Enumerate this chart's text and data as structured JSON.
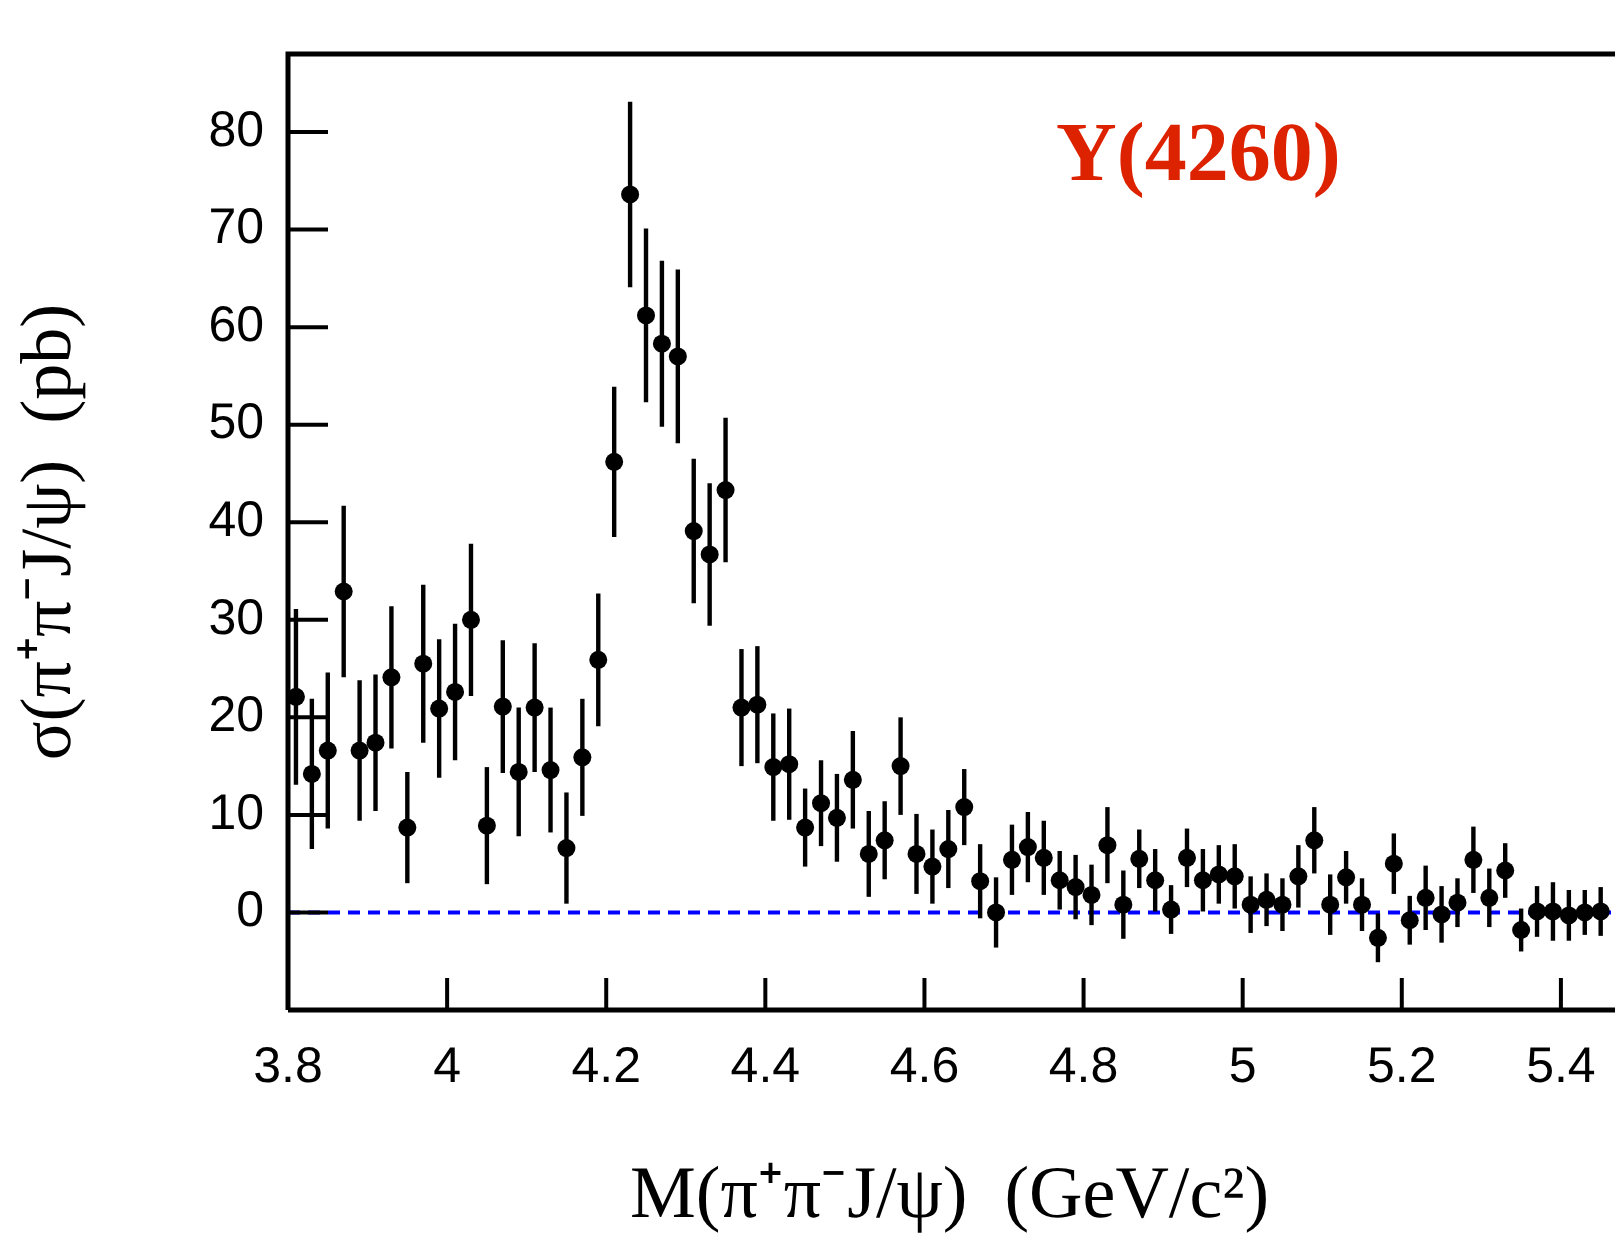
{
  "chart_data": {
    "type": "scatter",
    "xlabel": "M(π⁺π⁻J/ψ)  (GeV/c²)",
    "ylabel": "σ(π⁺π⁻J/ψ)  (pb)",
    "annotations": [
      "Y(4260)"
    ],
    "xlim": [
      3.8,
      5.463
    ],
    "xticks": [
      {
        "value": 3.8,
        "label": "3.8"
      },
      {
        "value": 4,
        "label": "4"
      },
      {
        "value": 4.2,
        "label": "4.2"
      },
      {
        "value": 4.4,
        "label": "4.4"
      },
      {
        "value": 4.6,
        "label": "4.6"
      },
      {
        "value": 4.8,
        "label": "4.8"
      },
      {
        "value": 5,
        "label": "5"
      },
      {
        "value": 5.2,
        "label": "5.2"
      },
      {
        "value": 5.4,
        "label": "5.4"
      }
    ],
    "ylim": [
      -10,
      88
    ],
    "yticks": [
      0,
      10,
      20,
      30,
      40,
      50,
      60,
      70,
      80
    ],
    "grid": false,
    "legend": false,
    "marker": "circle",
    "ref_lines": [
      {
        "axis": "y",
        "value": 0,
        "color": "#0000ff",
        "line_style": "dashed"
      }
    ],
    "series": [
      {
        "color": "#000000",
        "x": [
          3.81,
          3.83,
          3.85,
          3.87,
          3.89,
          3.91,
          3.93,
          3.95,
          3.97,
          3.99,
          4.01,
          4.03,
          4.05,
          4.07,
          4.09,
          4.11,
          4.13,
          4.15,
          4.17,
          4.19,
          4.21,
          4.23,
          4.25,
          4.27,
          4.29,
          4.31,
          4.33,
          4.35,
          4.37,
          4.39,
          4.41,
          4.43,
          4.45,
          4.47,
          4.49,
          4.51,
          4.53,
          4.55,
          4.57,
          4.59,
          4.61,
          4.63,
          4.65,
          4.67,
          4.69,
          4.71,
          4.73,
          4.75,
          4.77,
          4.79,
          4.81,
          4.83,
          4.85,
          4.87,
          4.89,
          4.91,
          4.93,
          4.95,
          4.97,
          4.99,
          5.01,
          5.03,
          5.05,
          5.07,
          5.09,
          5.11,
          5.13,
          5.15,
          5.17,
          5.19,
          5.21,
          5.23,
          5.25,
          5.27,
          5.29,
          5.31,
          5.33,
          5.35,
          5.37,
          5.39,
          5.41,
          5.43,
          5.45
        ],
        "values": [
          22.1,
          14.2,
          16.6,
          32.9,
          16.6,
          17.4,
          24.1,
          8.7,
          25.5,
          20.9,
          22.6,
          30,
          8.9,
          21.1,
          14.4,
          21,
          14.6,
          6.6,
          15.9,
          25.9,
          46.2,
          73.6,
          61.2,
          58.3,
          57,
          39.1,
          36.7,
          43.3,
          21,
          21.3,
          14.9,
          15.2,
          8.7,
          11.2,
          9.7,
          13.6,
          6,
          7.4,
          15,
          6,
          4.7,
          6.5,
          10.8,
          3.2,
          0,
          5.4,
          6.7,
          5.6,
          3.3,
          2.6,
          1.8,
          6.9,
          0.8,
          5.5,
          3.3,
          0.3,
          5.6,
          3.3,
          3.9,
          3.7,
          0.8,
          1.3,
          0.8,
          3.7,
          7.4,
          0.8,
          3.6,
          0.8,
          -2.6,
          5,
          -0.8,
          1.5,
          -0.2,
          1,
          5.4,
          1.5,
          4.3,
          -1.8,
          0.1,
          0.1,
          -0.3,
          0,
          0.1
        ],
        "errors": [
          9,
          7.7,
          8,
          8.8,
          7.2,
          7,
          7.3,
          5.7,
          8.1,
          7.1,
          7,
          7.8,
          6,
          6.8,
          6.6,
          6.6,
          6.4,
          5.7,
          6,
          6.8,
          7.7,
          9.5,
          8.9,
          8.5,
          8.9,
          7.4,
          7.3,
          7.4,
          6,
          6,
          5.5,
          5.7,
          4,
          4.4,
          4.5,
          5,
          4.4,
          4,
          5,
          4.1,
          3.8,
          4,
          3.9,
          3.8,
          3.6,
          3.6,
          3.6,
          3.8,
          3,
          3.3,
          3.1,
          3.9,
          3.5,
          3,
          3.2,
          2.5,
          3,
          3.2,
          3,
          3.3,
          2.9,
          2.7,
          2.7,
          3.2,
          3.4,
          3.1,
          2.7,
          2.7,
          2.5,
          3.1,
          2.5,
          3.3,
          2.9,
          2.5,
          3.4,
          3,
          2.8,
          2.2,
          2.6,
          3,
          2.6,
          2.3,
          2.5
        ]
      }
    ]
  }
}
